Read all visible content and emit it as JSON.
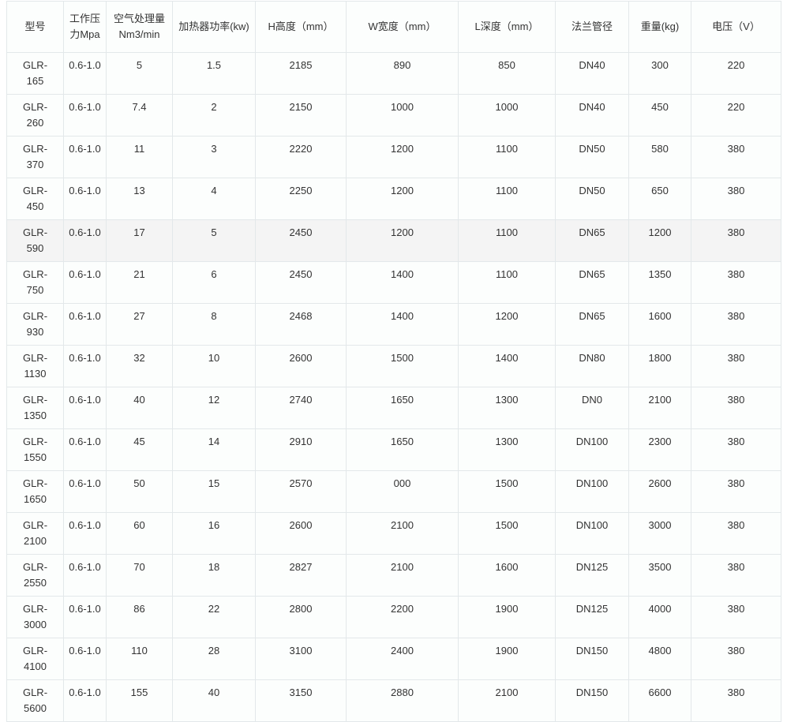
{
  "headers": [
    "型号",
    "工作压力Mpa",
    "空气处理量Nm3/min",
    "加热器功率(kw)",
    "H高度（mm）",
    "W宽度（mm）",
    "L深度（mm）",
    "法兰管径",
    "重量(kg)",
    "电压（V）"
  ],
  "rows": [
    [
      "GLR-165",
      "0.6-1.0",
      "5",
      "1.5",
      "2185",
      "890",
      "850",
      "DN40",
      "300",
      "220"
    ],
    [
      "GLR-260",
      "0.6-1.0",
      "7.4",
      "2",
      "2150",
      "1000",
      "1000",
      "DN40",
      "450",
      "220"
    ],
    [
      "GLR-370",
      "0.6-1.0",
      "11",
      "3",
      "2220",
      "1200",
      "1100",
      "DN50",
      "580",
      "380"
    ],
    [
      "GLR-450",
      "0.6-1.0",
      "13",
      "4",
      "2250",
      "1200",
      "1100",
      "DN50",
      "650",
      "380"
    ],
    [
      "GLR-590",
      "0.6-1.0",
      "17",
      "5",
      "2450",
      "1200",
      "1100",
      "DN65",
      "1200",
      "380"
    ],
    [
      "GLR-750",
      "0.6-1.0",
      "21",
      "6",
      "2450",
      "1400",
      "1100",
      "DN65",
      "1350",
      "380"
    ],
    [
      "GLR-930",
      "0.6-1.0",
      "27",
      "8",
      "2468",
      "1400",
      "1200",
      "DN65",
      "1600",
      "380"
    ],
    [
      "GLR-1130",
      "0.6-1.0",
      "32",
      "10",
      "2600",
      "1500",
      "1400",
      "DN80",
      "1800",
      "380"
    ],
    [
      "GLR-1350",
      "0.6-1.0",
      "40",
      "12",
      "2740",
      "1650",
      "1300",
      "DN0",
      "2100",
      "380"
    ],
    [
      "GLR-1550",
      "0.6-1.0",
      "45",
      "14",
      "2910",
      "1650",
      "1300",
      "DN100",
      "2300",
      "380"
    ],
    [
      "GLR-1650",
      "0.6-1.0",
      "50",
      "15",
      "2570",
      "000",
      "1500",
      "DN100",
      "2600",
      "380"
    ],
    [
      "GLR-2100",
      "0.6-1.0",
      "60",
      "16",
      "2600",
      "2100",
      "1500",
      "DN100",
      "3000",
      "380"
    ],
    [
      "GLR-2550",
      "0.6-1.0",
      "70",
      "18",
      "2827",
      "2100",
      "1600",
      "DN125",
      "3500",
      "380"
    ],
    [
      "GLR-3000",
      "0.6-1.0",
      "86",
      "22",
      "2800",
      "2200",
      "1900",
      "DN125",
      "4000",
      "380"
    ],
    [
      "GLR-4100",
      "0.6-1.0",
      "110",
      "28",
      "3100",
      "2400",
      "1900",
      "DN150",
      "4800",
      "380"
    ],
    [
      "GLR-5600",
      "0.6-1.0",
      "155",
      "40",
      "3150",
      "2880",
      "2100",
      "DN150",
      "6600",
      "380"
    ]
  ],
  "highlighted_row": 4
}
